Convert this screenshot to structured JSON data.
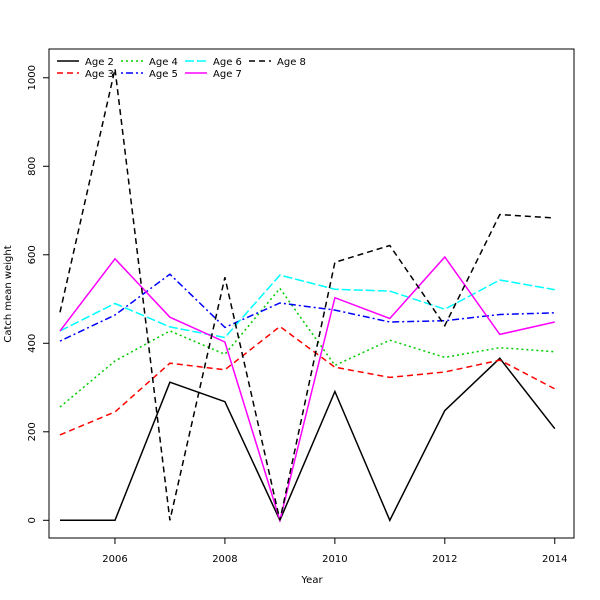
{
  "chart_data": {
    "type": "line",
    "title": "",
    "xlabel": "Year",
    "ylabel": "Catch mean weight",
    "x": [
      2005,
      2006,
      2007,
      2008,
      2009,
      2010,
      2011,
      2012,
      2013,
      2014
    ],
    "xlim": [
      2004.8,
      2014.35
    ],
    "ylim": [
      -40,
      1065
    ],
    "xticks": [
      2006,
      2008,
      2010,
      2012,
      2014
    ],
    "yticks": [
      0,
      200,
      400,
      600,
      800,
      1000
    ],
    "grid": false,
    "legend_position": "top-left",
    "series": [
      {
        "name": "Age 2",
        "color": "#000000",
        "dash": "solid",
        "values": [
          0,
          0,
          312,
          268,
          0,
          291,
          0,
          248,
          366,
          207
        ]
      },
      {
        "name": "Age 3",
        "color": "#ff0000",
        "dash": "dashed",
        "values": [
          193,
          245,
          355,
          340,
          438,
          346,
          323,
          335,
          362,
          297
        ]
      },
      {
        "name": "Age 4",
        "color": "#00cd00",
        "dash": "dotted",
        "values": [
          256,
          360,
          428,
          375,
          524,
          350,
          407,
          368,
          390,
          381
        ]
      },
      {
        "name": "Age 5",
        "color": "#0000ff",
        "dash": "dotdash",
        "values": [
          405,
          464,
          556,
          436,
          491,
          475,
          448,
          451,
          465,
          469
        ]
      },
      {
        "name": "Age 6",
        "color": "#00ffff",
        "dash": "longdash",
        "values": [
          428,
          490,
          437,
          413,
          554,
          522,
          518,
          477,
          543,
          521
        ]
      },
      {
        "name": "Age 7",
        "color": "#ff00ff",
        "dash": "solid",
        "values": [
          428,
          591,
          459,
          403,
          0,
          503,
          456,
          595,
          420,
          448
        ]
      },
      {
        "name": "Age 8",
        "color": "#000000",
        "dash": "dashed",
        "values": [
          470,
          1020,
          0,
          549,
          0,
          583,
          621,
          440,
          691,
          683
        ]
      }
    ]
  }
}
